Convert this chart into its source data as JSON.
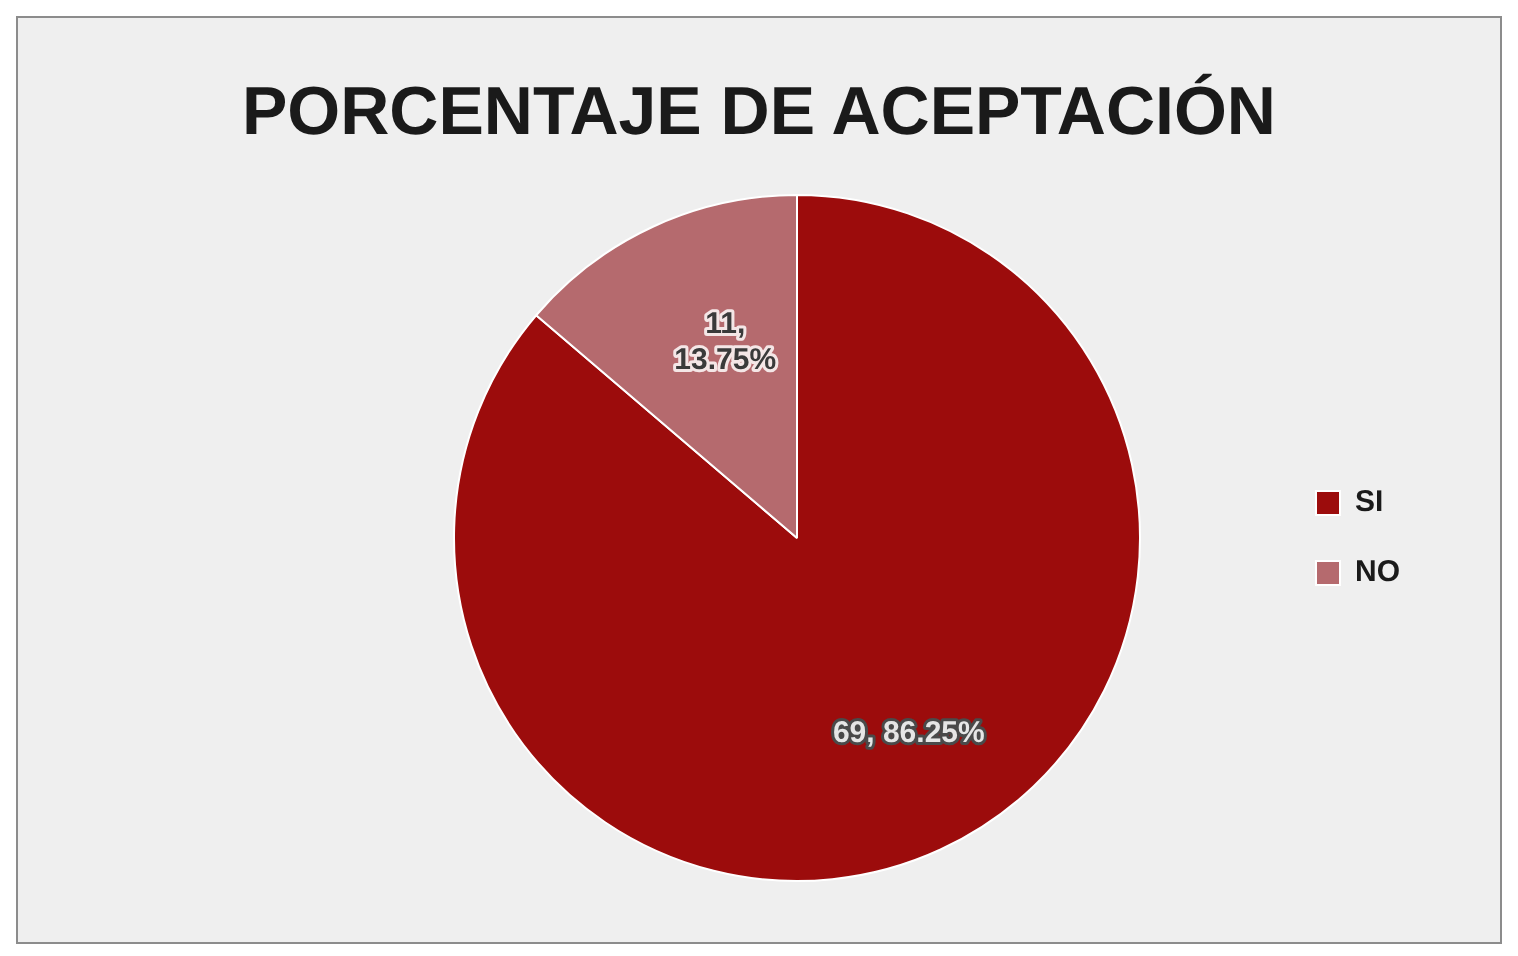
{
  "chart_data": {
    "type": "pie",
    "title": "PORCENTAJE DE ACEPTACIÓN",
    "categories": [
      "SI",
      "NO"
    ],
    "values": [
      69,
      11
    ],
    "colors": [
      "#9c0c0c",
      "#b56a6e"
    ],
    "value_labels": [
      "69, 86.25%",
      "11, 13.75%"
    ],
    "legend": "right"
  }
}
